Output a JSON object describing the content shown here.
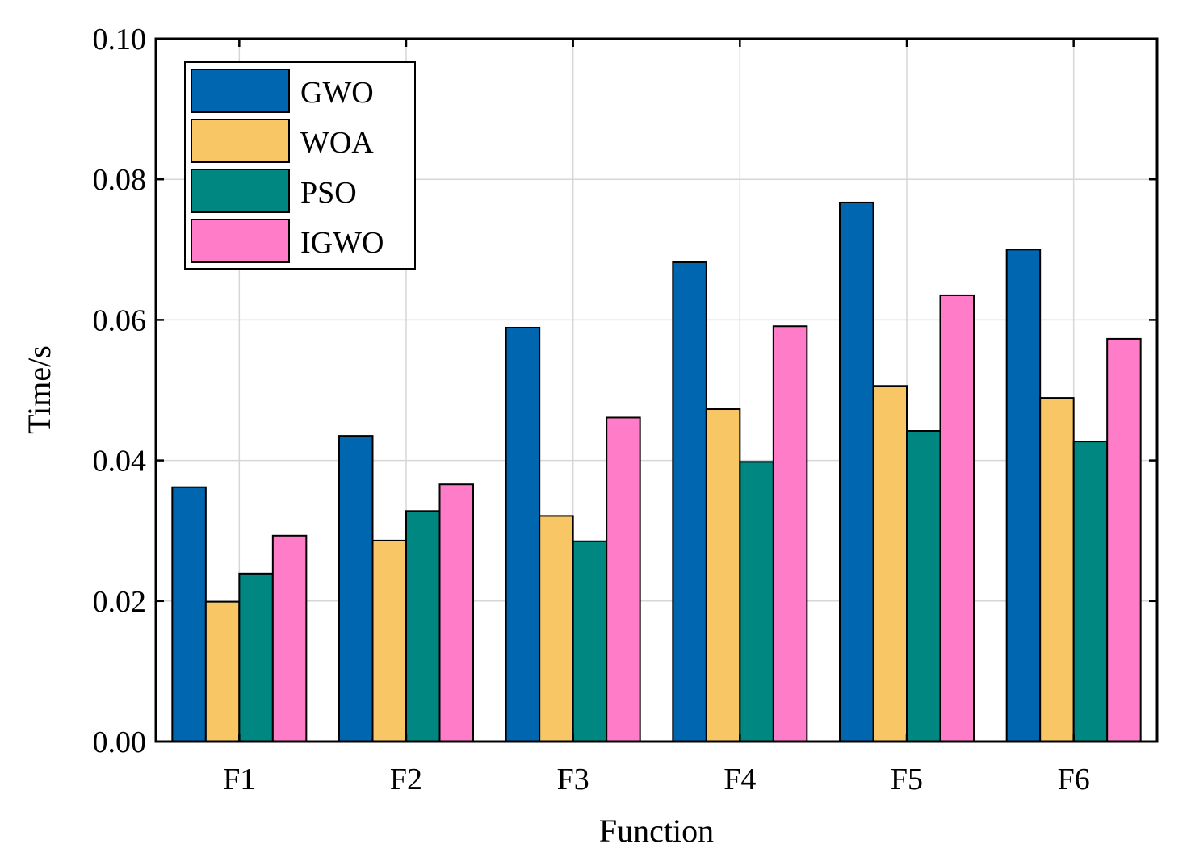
{
  "chart_data": {
    "type": "bar",
    "title": "",
    "xlabel": "Function",
    "ylabel": "Time/s",
    "categories": [
      "F1",
      "F2",
      "F3",
      "F4",
      "F5",
      "F6"
    ],
    "ylim": [
      0,
      0.1
    ],
    "yticks": [
      "0.00",
      "0.02",
      "0.04",
      "0.06",
      "0.08",
      "0.10"
    ],
    "grid": true,
    "legend_position": "top-left",
    "series": [
      {
        "name": "GWO",
        "color": "#0066b0",
        "values": [
          0.0362,
          0.0435,
          0.0589,
          0.0682,
          0.0767,
          0.07
        ]
      },
      {
        "name": "WOA",
        "color": "#f8c664",
        "values": [
          0.0199,
          0.0286,
          0.0321,
          0.0473,
          0.0506,
          0.0489
        ]
      },
      {
        "name": "PSO",
        "color": "#008782",
        "values": [
          0.0239,
          0.0328,
          0.0285,
          0.0398,
          0.0442,
          0.0427
        ]
      },
      {
        "name": "IGWO",
        "color": "#ff7dc8",
        "values": [
          0.0293,
          0.0366,
          0.0461,
          0.0591,
          0.0635,
          0.0573
        ]
      }
    ]
  }
}
